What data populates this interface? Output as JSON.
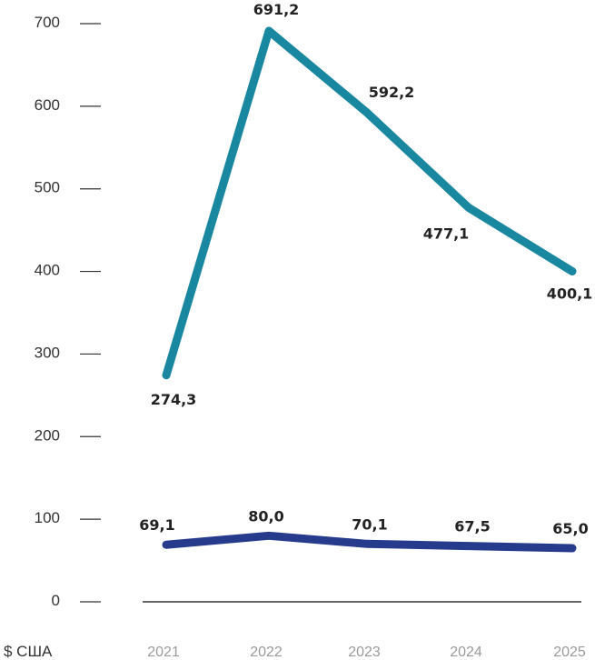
{
  "chart_data": {
    "type": "line",
    "unit_label": "$ США",
    "x": [
      "2021",
      "2022",
      "2023",
      "2024",
      "2025"
    ],
    "y_ticks": [
      "0",
      "100",
      "200",
      "300",
      "400",
      "500",
      "600",
      "700"
    ],
    "ylim": [
      0,
      700
    ],
    "grid": false,
    "series": [
      {
        "values": [
          274.3,
          691.2,
          592.2,
          477.1,
          400.1
        ],
        "labels": [
          "274,3",
          "691,2",
          "592,2",
          "477,1",
          "400,1"
        ],
        "color": "#1a87a0"
      },
      {
        "values": [
          69.1,
          80.0,
          70.1,
          67.5,
          65.0
        ],
        "labels": [
          "69,1",
          "80,0",
          "70,1",
          "67,5",
          "65,0"
        ],
        "color": "#263b8c"
      }
    ]
  }
}
